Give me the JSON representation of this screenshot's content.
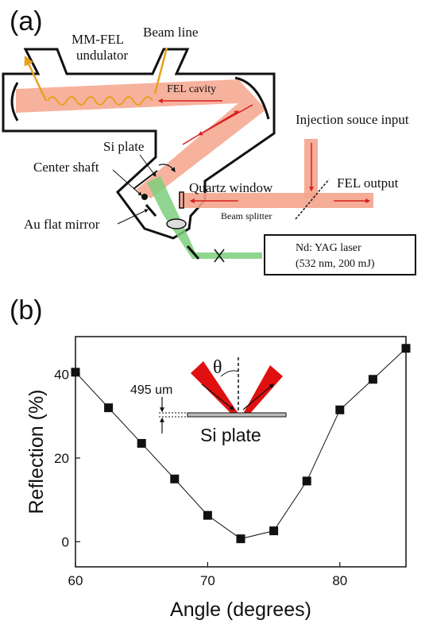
{
  "panel_a": {
    "panel_label": "(a)",
    "labels": {
      "undulator_line1": "MM-FEL",
      "undulator_line2": "undulator",
      "beam_line": "Beam line",
      "fel_cavity": "FEL cavity",
      "injection": "Injection souce input",
      "si_plate": "Si plate",
      "center_shaft": "Center shaft",
      "quartz_window": "Quartz window",
      "fel_output": "FEL output",
      "beam_splitter": "Beam splitter",
      "au_mirror": "Au flat mirror",
      "laser_line1": "Nd: YAG laser",
      "laser_line2": "(532 nm, 200 mJ)"
    }
  },
  "panel_b": {
    "panel_label": "(b)",
    "inset": {
      "thickness": "495 um",
      "theta": "θ",
      "plate": "Si plate"
    }
  },
  "chart_data": {
    "type": "line",
    "xlabel": "Angle (degrees)",
    "ylabel": "Reflection (%)",
    "xlim": [
      60,
      85
    ],
    "ylim": [
      -6,
      49
    ],
    "x_ticks": [
      "60",
      "70",
      "80"
    ],
    "x_tick_values": [
      60,
      70,
      80
    ],
    "y_ticks": [
      "0",
      "20",
      "40"
    ],
    "y_tick_values": [
      0,
      20,
      40
    ],
    "grid": false,
    "marker": "square",
    "series": [
      {
        "x": [
          60,
          62.5,
          65,
          67.5,
          70,
          72.5,
          75,
          77.5,
          80,
          82.5,
          85
        ],
        "y": [
          40.5,
          32,
          23.5,
          15,
          6.3,
          0.7,
          2.6,
          14.5,
          31.5,
          38.8,
          46.2
        ]
      }
    ]
  }
}
